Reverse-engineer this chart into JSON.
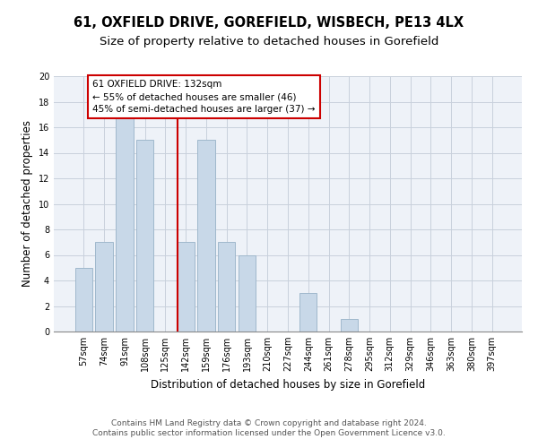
{
  "title1": "61, OXFIELD DRIVE, GOREFIELD, WISBECH, PE13 4LX",
  "title2": "Size of property relative to detached houses in Gorefield",
  "xlabel": "Distribution of detached houses by size in Gorefield",
  "ylabel": "Number of detached properties",
  "bar_labels": [
    "57sqm",
    "74sqm",
    "91sqm",
    "108sqm",
    "125sqm",
    "142sqm",
    "159sqm",
    "176sqm",
    "193sqm",
    "210sqm",
    "227sqm",
    "244sqm",
    "261sqm",
    "278sqm",
    "295sqm",
    "312sqm",
    "329sqm",
    "346sqm",
    "363sqm",
    "380sqm",
    "397sqm"
  ],
  "bar_values": [
    5,
    7,
    17,
    15,
    0,
    7,
    15,
    7,
    6,
    0,
    0,
    3,
    0,
    1,
    0,
    0,
    0,
    0,
    0,
    0,
    0
  ],
  "bar_color": "#c8d8e8",
  "bar_edgecolor": "#a0b8cc",
  "ylim": [
    0,
    20
  ],
  "yticks": [
    0,
    2,
    4,
    6,
    8,
    10,
    12,
    14,
    16,
    18,
    20
  ],
  "annotation_line1": "61 OXFIELD DRIVE: 132sqm",
  "annotation_line2": "← 55% of detached houses are smaller (46)",
  "annotation_line3": "45% of semi-detached houses are larger (37) →",
  "annotation_box_color": "#cc0000",
  "bg_color": "#eef2f8",
  "grid_color": "#c8d0dc",
  "footer_text": "Contains HM Land Registry data © Crown copyright and database right 2024.\nContains public sector information licensed under the Open Government Licence v3.0.",
  "title1_fontsize": 10.5,
  "title2_fontsize": 9.5,
  "xlabel_fontsize": 8.5,
  "ylabel_fontsize": 8.5,
  "ann_fontsize": 7.5,
  "tick_fontsize": 7.0,
  "footer_fontsize": 6.5
}
